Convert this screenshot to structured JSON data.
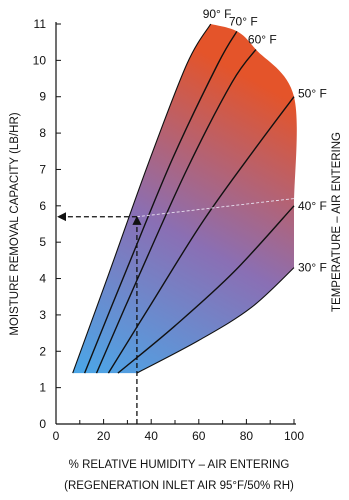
{
  "chart_data": {
    "type": "line",
    "xlabel": "% RELATIVE HUMIDITY – AIR ENTERING",
    "xlabel_sub": "(REGENERATION INLET AIR 95°F/50% RH)",
    "ylabel": "MOISTURE REMOVAL CAPACITY (LB/HR)",
    "right_label": "TEMPERATURE – AIR ENTERING",
    "xlim": [
      0,
      100
    ],
    "ylim": [
      0,
      11
    ],
    "xticks": [
      0,
      20,
      40,
      60,
      80,
      100
    ],
    "yticks": [
      0,
      1,
      2,
      3,
      4,
      5,
      6,
      7,
      8,
      9,
      10,
      11
    ],
    "grid": false,
    "series": [
      {
        "name": "90° F",
        "x": [
          7,
          22,
          39,
          55,
          65
        ],
        "y": [
          1.4,
          4.1,
          7.2,
          9.9,
          11.0
        ]
      },
      {
        "name": "70° F",
        "x": [
          12,
          30,
          49,
          68,
          76
        ],
        "y": [
          1.4,
          4.3,
          7.3,
          9.9,
          10.8
        ]
      },
      {
        "name": "60° F",
        "x": [
          17,
          35,
          55,
          74,
          84
        ],
        "y": [
          1.4,
          4.1,
          7.0,
          9.4,
          10.3
        ]
      },
      {
        "name": "50° F",
        "x": [
          22,
          40,
          62,
          84,
          100
        ],
        "y": [
          1.4,
          3.3,
          5.6,
          7.6,
          9.0
        ]
      },
      {
        "name": "40° F",
        "x": [
          26,
          50,
          75,
          100
        ],
        "y": [
          1.4,
          2.7,
          4.2,
          6.0
        ]
      },
      {
        "name": "30° F",
        "x": [
          34,
          60,
          82,
          100
        ],
        "y": [
          1.4,
          2.3,
          3.2,
          4.3
        ]
      }
    ],
    "example_path": {
      "x": [
        34,
        34,
        0
      ],
      "y": [
        0,
        5.7,
        5.7
      ]
    }
  }
}
